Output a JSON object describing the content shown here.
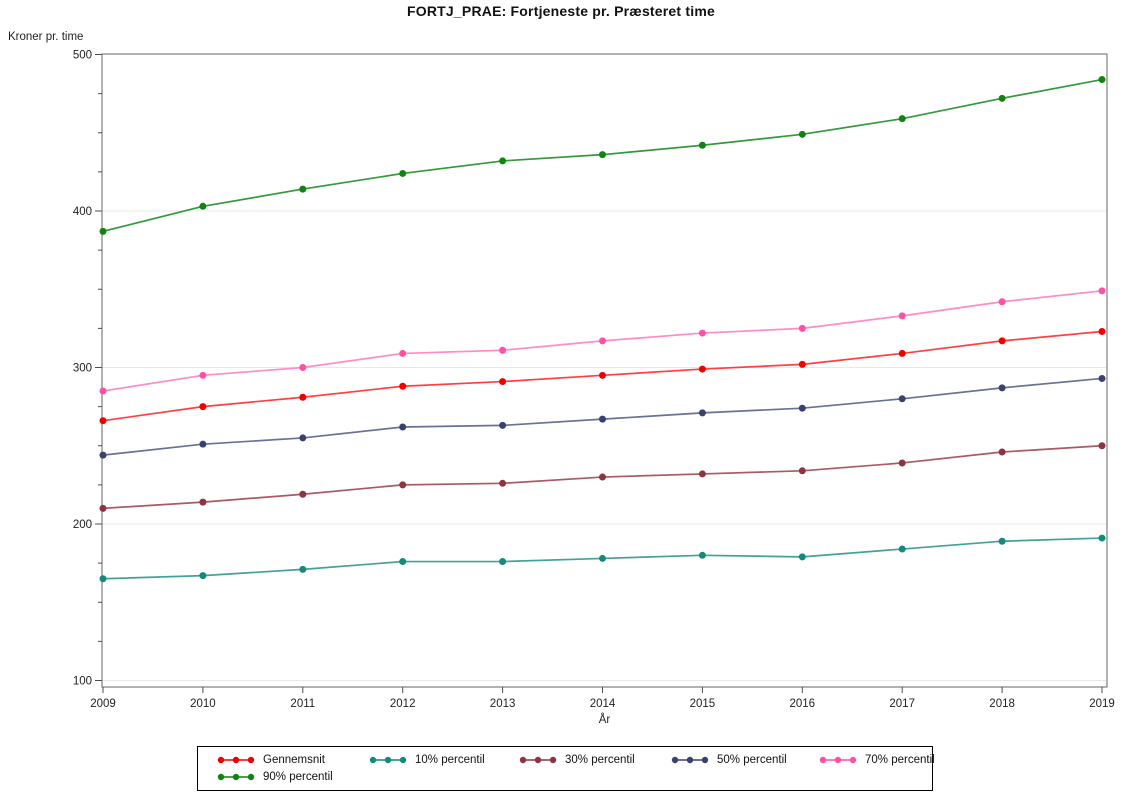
{
  "title": "FORTJ_PRAE: Fortjeneste pr. Præsteret time",
  "chart_data": {
    "type": "line",
    "title": "FORTJ_PRAE: Fortjeneste pr. Præsteret time",
    "xlabel": "År",
    "ylabel": "Kroner pr. time",
    "x": [
      2009,
      2010,
      2011,
      2012,
      2013,
      2014,
      2015,
      2016,
      2017,
      2018,
      2019
    ],
    "ylim": [
      100,
      500
    ],
    "y_ticks": [
      100,
      200,
      300,
      400,
      500
    ],
    "y_minor_tick_step": 25,
    "grid": "horizontal-major",
    "legend_position": "bottom-center",
    "marker": "filled-circle",
    "series": [
      {
        "name": "Gennemsnit",
        "marker_color": "#f20000",
        "line_color": "#ff4040",
        "values": [
          266,
          275,
          281,
          288,
          291,
          295,
          299,
          302,
          309,
          317,
          323
        ]
      },
      {
        "name": "10% percentil",
        "marker_color": "#16897e",
        "line_color": "#43a296",
        "values": [
          165,
          167,
          171,
          176,
          176,
          178,
          180,
          179,
          184,
          189,
          191
        ]
      },
      {
        "name": "30% percentil",
        "marker_color": "#8e3340",
        "line_color": "#aa5a64",
        "values": [
          210,
          214,
          219,
          225,
          226,
          230,
          232,
          234,
          239,
          246,
          250
        ]
      },
      {
        "name": "50% percentil",
        "marker_color": "#39426f",
        "line_color": "#6a7194",
        "values": [
          244,
          251,
          255,
          262,
          263,
          267,
          271,
          274,
          280,
          287,
          293
        ]
      },
      {
        "name": "70% percentil",
        "marker_color": "#ff4fa7",
        "line_color": "#ff8cc4",
        "values": [
          285,
          295,
          300,
          309,
          311,
          317,
          322,
          325,
          333,
          342,
          349
        ]
      },
      {
        "name": "90% percentil",
        "marker_color": "#128212",
        "line_color": "#34993a",
        "values": [
          387,
          403,
          414,
          424,
          432,
          436,
          442,
          449,
          459,
          472,
          484
        ]
      }
    ],
    "style_colors": {
      "frame": "#7f7f7f",
      "tick": "#4d4d4d",
      "gridline": "#e8e8e8",
      "background": "#ffffff"
    }
  }
}
